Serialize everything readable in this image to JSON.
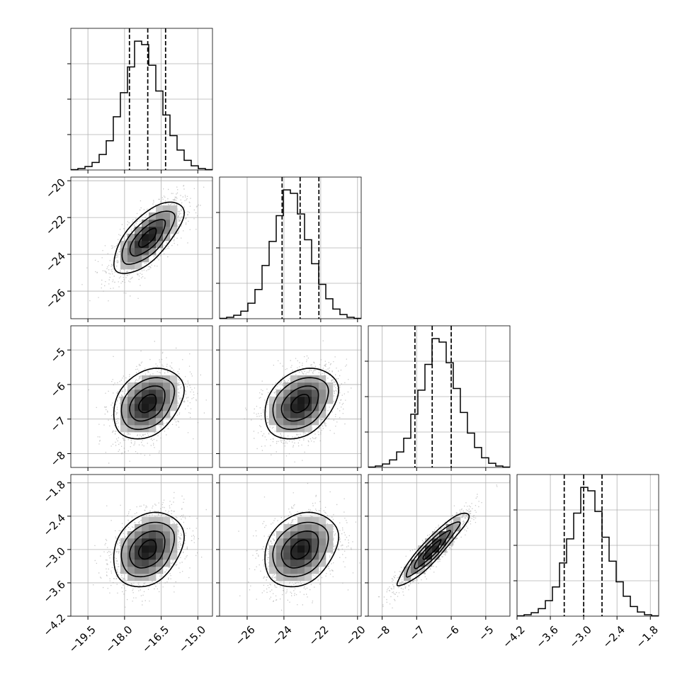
{
  "chart_data": {
    "type": "corner",
    "grid": true,
    "parameters": [
      {
        "range": [
          -20.2,
          -14.4
        ],
        "ticks": [
          -19.5,
          -18.0,
          -16.5,
          -15.0
        ],
        "tick_labels": [
          "−19.5",
          "−18.0",
          "−16.5",
          "−15.0"
        ],
        "quantiles": [
          -17.8,
          -17.05,
          -16.32
        ],
        "mean": -17.05,
        "sd": 0.72,
        "hist_bin_edges": [
          -20.2,
          -19.91,
          -19.62,
          -19.33,
          -19.04,
          -18.75,
          -18.46,
          -18.17,
          -17.88,
          -17.59,
          -17.3,
          -17.01,
          -16.72,
          -16.43,
          -16.14,
          -15.85,
          -15.56,
          -15.27,
          -14.98,
          -14.69,
          -14.4
        ],
        "hist_counts": [
          1,
          4,
          10,
          22,
          45,
          85,
          155,
          225,
          300,
          375,
          365,
          305,
          230,
          160,
          100,
          58,
          28,
          12,
          4,
          1
        ]
      },
      {
        "range": [
          -27.5,
          -19.8
        ],
        "ticks": [
          -26,
          -24,
          -22,
          -20
        ],
        "tick_labels": [
          "−26",
          "−24",
          "−22",
          "−20"
        ],
        "quantiles": [
          -24.1,
          -23.12,
          -22.1
        ],
        "mean": -23.1,
        "sd": 1.0,
        "hist_bin_edges": [
          -27.5,
          -27.115,
          -26.73,
          -26.345,
          -25.96,
          -25.575,
          -25.19,
          -24.805,
          -24.42,
          -24.035,
          -23.65,
          -23.265,
          -22.88,
          -22.495,
          -22.11,
          -21.725,
          -21.34,
          -20.955,
          -20.57,
          -20.185,
          -19.8
        ],
        "hist_counts": [
          1,
          4,
          10,
          22,
          45,
          85,
          155,
          225,
          300,
          375,
          365,
          305,
          230,
          160,
          100,
          58,
          28,
          12,
          4,
          1
        ]
      },
      {
        "range": [
          -8.4,
          -4.3
        ],
        "ticks": [
          -8,
          -7,
          -6,
          -5
        ],
        "tick_labels": [
          "−8",
          "−7",
          "−6",
          "−5"
        ],
        "quantiles": [
          -7.05,
          -6.55,
          -6.0
        ],
        "mean": -6.55,
        "sd": 0.52,
        "hist_bin_edges": [
          -8.4,
          -8.195,
          -7.99,
          -7.785,
          -7.58,
          -7.375,
          -7.17,
          -6.965,
          -6.76,
          -6.555,
          -6.35,
          -6.145,
          -5.94,
          -5.735,
          -5.53,
          -5.325,
          -5.12,
          -4.915,
          -4.71,
          -4.505,
          -4.3
        ],
        "hist_counts": [
          1,
          4,
          10,
          22,
          45,
          85,
          155,
          225,
          300,
          375,
          365,
          305,
          230,
          160,
          100,
          58,
          28,
          12,
          4,
          1
        ]
      },
      {
        "range": [
          -4.2,
          -1.65
        ],
        "ticks": [
          -4.2,
          -3.6,
          -3.0,
          -2.4,
          -1.8
        ],
        "tick_labels": [
          "−4.2",
          "−3.6",
          "−3.0",
          "−2.4",
          "−1.8"
        ],
        "quantiles": [
          -3.35,
          -3.0,
          -2.67
        ],
        "mean": -3.0,
        "sd": 0.34,
        "hist_bin_edges": [
          -4.2,
          -4.0725,
          -3.945,
          -3.8175,
          -3.69,
          -3.5625,
          -3.435,
          -3.3075,
          -3.18,
          -3.0525,
          -2.925,
          -2.7975,
          -2.67,
          -2.5425,
          -2.415,
          -2.2875,
          -2.16,
          -2.0325,
          -1.905,
          -1.7775,
          -1.65
        ],
        "hist_counts": [
          1,
          4,
          10,
          22,
          45,
          85,
          155,
          225,
          300,
          375,
          365,
          305,
          230,
          160,
          100,
          58,
          28,
          12,
          4,
          1
        ]
      }
    ],
    "correlations": [
      {
        "x": 0,
        "y": 1,
        "rho": 0.7
      },
      {
        "x": 0,
        "y": 2,
        "rho": 0.35
      },
      {
        "x": 1,
        "y": 2,
        "rho": 0.35
      },
      {
        "x": 0,
        "y": 3,
        "rho": 0.3
      },
      {
        "x": 1,
        "y": 3,
        "rho": 0.3
      },
      {
        "x": 2,
        "y": 3,
        "rho": 0.93
      }
    ],
    "contour_levels_sigma": [
      0.5,
      1.0,
      1.5,
      2.0
    ],
    "colors": {
      "line": "#000000",
      "scatter": "#9a9a9a",
      "grid": "#b0b0b0",
      "density_max": "#000000"
    }
  }
}
